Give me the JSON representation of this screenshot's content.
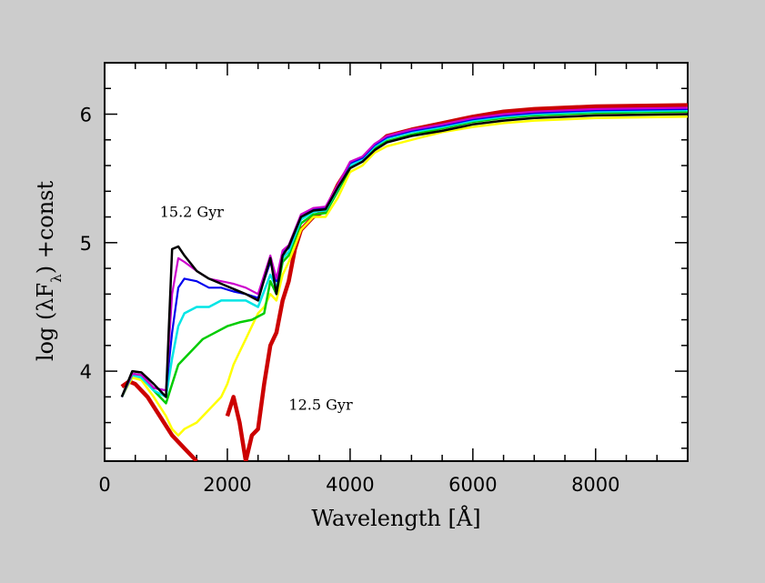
{
  "chart_data": {
    "type": "line",
    "title": "",
    "xlabel": "Wavelength [Å]",
    "ylabel": "log (λF",
    "ylabel_sub": "λ",
    "ylabel_tail": ") +const",
    "xlim": [
      0,
      9500
    ],
    "ylim": [
      3.3,
      6.4
    ],
    "xticks": [
      0,
      2000,
      4000,
      6000,
      8000
    ],
    "xtick_labels": [
      "0",
      "2000",
      "4000",
      "6000",
      "8000"
    ],
    "yticks": [
      4,
      5,
      6
    ],
    "ytick_labels": [
      "4",
      "5",
      "6"
    ],
    "grid": false,
    "legend": "none",
    "annotations": [
      {
        "text": "15.2 Gyr",
        "x": 900,
        "y": 5.2
      },
      {
        "text": "12.5 Gyr",
        "x": 3000,
        "y": 3.7
      }
    ],
    "series": [
      {
        "color": "#cc0000",
        "width": 4.5,
        "points": [
          [
            280,
            3.88
          ],
          [
            400,
            3.92
          ],
          [
            500,
            3.9
          ],
          [
            700,
            3.8
          ],
          [
            900,
            3.65
          ],
          [
            1100,
            3.5
          ],
          [
            1300,
            3.4
          ],
          [
            1500,
            3.3
          ]
        ],
        "extra": [
          [
            2000,
            3.65
          ],
          [
            2100,
            3.8
          ],
          [
            2200,
            3.6
          ],
          [
            2300,
            3.3
          ],
          [
            2400,
            3.5
          ],
          [
            2500,
            3.55
          ],
          [
            2600,
            3.9
          ],
          [
            2700,
            4.2
          ],
          [
            2800,
            4.3
          ],
          [
            2900,
            4.55
          ],
          [
            3000,
            4.7
          ],
          [
            3100,
            4.95
          ],
          [
            3200,
            5.1
          ],
          [
            3400,
            5.2
          ],
          [
            3600,
            5.25
          ],
          [
            3800,
            5.45
          ],
          [
            4000,
            5.6
          ],
          [
            4200,
            5.65
          ],
          [
            4400,
            5.75
          ],
          [
            4600,
            5.83
          ],
          [
            5000,
            5.88
          ],
          [
            5500,
            5.93
          ],
          [
            6000,
            5.98
          ],
          [
            6500,
            6.02
          ],
          [
            7000,
            6.04
          ],
          [
            8000,
            6.06
          ],
          [
            9500,
            6.07
          ]
        ]
      },
      {
        "color": "#ffff00",
        "width": 2.5,
        "points": [
          [
            280,
            3.8
          ],
          [
            450,
            3.95
          ],
          [
            600,
            3.93
          ],
          [
            800,
            3.8
          ],
          [
            1000,
            3.65
          ],
          [
            1100,
            3.55
          ],
          [
            1200,
            3.5
          ],
          [
            1300,
            3.55
          ],
          [
            1500,
            3.6
          ],
          [
            1700,
            3.7
          ],
          [
            1900,
            3.8
          ],
          [
            2000,
            3.9
          ],
          [
            2100,
            4.05
          ],
          [
            2200,
            4.15
          ],
          [
            2300,
            4.25
          ],
          [
            2400,
            4.35
          ],
          [
            2500,
            4.45
          ],
          [
            2600,
            4.5
          ],
          [
            2700,
            4.6
          ],
          [
            2800,
            4.55
          ],
          [
            2900,
            4.75
          ],
          [
            3000,
            4.85
          ],
          [
            3200,
            5.1
          ],
          [
            3400,
            5.2
          ],
          [
            3600,
            5.2
          ],
          [
            3800,
            5.35
          ],
          [
            4000,
            5.55
          ],
          [
            4200,
            5.6
          ],
          [
            4400,
            5.7
          ],
          [
            4600,
            5.75
          ],
          [
            5000,
            5.8
          ],
          [
            5500,
            5.86
          ],
          [
            6000,
            5.9
          ],
          [
            6500,
            5.93
          ],
          [
            7000,
            5.95
          ],
          [
            8000,
            5.97
          ],
          [
            9500,
            5.98
          ]
        ]
      },
      {
        "color": "#00cc00",
        "width": 2.5,
        "points": [
          [
            280,
            3.8
          ],
          [
            450,
            3.97
          ],
          [
            600,
            3.95
          ],
          [
            800,
            3.85
          ],
          [
            1000,
            3.75
          ],
          [
            1100,
            3.9
          ],
          [
            1200,
            4.05
          ],
          [
            1400,
            4.15
          ],
          [
            1600,
            4.25
          ],
          [
            1800,
            4.3
          ],
          [
            2000,
            4.35
          ],
          [
            2200,
            4.38
          ],
          [
            2400,
            4.4
          ],
          [
            2600,
            4.45
          ],
          [
            2700,
            4.7
          ],
          [
            2800,
            4.6
          ],
          [
            2900,
            4.85
          ],
          [
            3000,
            4.9
          ],
          [
            3200,
            5.15
          ],
          [
            3400,
            5.22
          ],
          [
            3600,
            5.23
          ],
          [
            3800,
            5.4
          ],
          [
            4000,
            5.58
          ],
          [
            4200,
            5.63
          ],
          [
            4400,
            5.73
          ],
          [
            4600,
            5.79
          ],
          [
            5000,
            5.84
          ],
          [
            5500,
            5.89
          ],
          [
            6000,
            5.94
          ],
          [
            6500,
            5.97
          ],
          [
            7000,
            5.99
          ],
          [
            8000,
            6.01
          ],
          [
            9500,
            6.02
          ]
        ]
      },
      {
        "color": "#00e5e5",
        "width": 2.5,
        "points": [
          [
            280,
            3.8
          ],
          [
            450,
            3.97
          ],
          [
            600,
            3.95
          ],
          [
            800,
            3.85
          ],
          [
            1000,
            3.8
          ],
          [
            1100,
            4.1
          ],
          [
            1200,
            4.35
          ],
          [
            1300,
            4.45
          ],
          [
            1500,
            4.5
          ],
          [
            1700,
            4.5
          ],
          [
            1900,
            4.55
          ],
          [
            2100,
            4.55
          ],
          [
            2300,
            4.55
          ],
          [
            2500,
            4.5
          ],
          [
            2700,
            4.75
          ],
          [
            2800,
            4.65
          ],
          [
            2900,
            4.88
          ],
          [
            3000,
            4.93
          ],
          [
            3200,
            5.18
          ],
          [
            3400,
            5.24
          ],
          [
            3600,
            5.25
          ],
          [
            3800,
            5.42
          ],
          [
            4000,
            5.6
          ],
          [
            4200,
            5.65
          ],
          [
            4400,
            5.75
          ],
          [
            4600,
            5.81
          ],
          [
            5000,
            5.86
          ],
          [
            5500,
            5.9
          ],
          [
            6000,
            5.95
          ],
          [
            6500,
            5.98
          ],
          [
            7000,
            6.0
          ],
          [
            8000,
            6.02
          ],
          [
            9500,
            6.03
          ]
        ]
      },
      {
        "color": "#0000ee",
        "width": 2.2,
        "points": [
          [
            280,
            3.8
          ],
          [
            450,
            3.98
          ],
          [
            600,
            3.97
          ],
          [
            800,
            3.87
          ],
          [
            1000,
            3.85
          ],
          [
            1100,
            4.3
          ],
          [
            1200,
            4.65
          ],
          [
            1300,
            4.72
          ],
          [
            1500,
            4.7
          ],
          [
            1700,
            4.65
          ],
          [
            1900,
            4.65
          ],
          [
            2100,
            4.62
          ],
          [
            2300,
            4.6
          ],
          [
            2500,
            4.57
          ],
          [
            2700,
            4.85
          ],
          [
            2800,
            4.7
          ],
          [
            2900,
            4.92
          ],
          [
            3000,
            4.96
          ],
          [
            3200,
            5.2
          ],
          [
            3400,
            5.26
          ],
          [
            3600,
            5.27
          ],
          [
            3800,
            5.44
          ],
          [
            4000,
            5.62
          ],
          [
            4200,
            5.66
          ],
          [
            4400,
            5.76
          ],
          [
            4600,
            5.82
          ],
          [
            5000,
            5.87
          ],
          [
            5500,
            5.91
          ],
          [
            6000,
            5.96
          ],
          [
            6500,
            5.99
          ],
          [
            7000,
            6.01
          ],
          [
            8000,
            6.03
          ],
          [
            9500,
            6.04
          ]
        ]
      },
      {
        "color": "#cc00cc",
        "width": 2.2,
        "points": [
          [
            280,
            3.8
          ],
          [
            450,
            3.98
          ],
          [
            600,
            3.97
          ],
          [
            800,
            3.87
          ],
          [
            1000,
            3.85
          ],
          [
            1100,
            4.6
          ],
          [
            1200,
            4.88
          ],
          [
            1300,
            4.85
          ],
          [
            1500,
            4.78
          ],
          [
            1700,
            4.72
          ],
          [
            1900,
            4.7
          ],
          [
            2100,
            4.68
          ],
          [
            2300,
            4.65
          ],
          [
            2500,
            4.6
          ],
          [
            2700,
            4.9
          ],
          [
            2800,
            4.72
          ],
          [
            2900,
            4.94
          ],
          [
            3000,
            4.98
          ],
          [
            3200,
            5.22
          ],
          [
            3400,
            5.27
          ],
          [
            3600,
            5.28
          ],
          [
            3800,
            5.45
          ],
          [
            4000,
            5.63
          ],
          [
            4200,
            5.67
          ],
          [
            4400,
            5.77
          ],
          [
            4600,
            5.83
          ],
          [
            5000,
            5.88
          ],
          [
            5500,
            5.92
          ],
          [
            6000,
            5.97
          ],
          [
            6500,
            6.0
          ],
          [
            7000,
            6.02
          ],
          [
            8000,
            6.04
          ],
          [
            9500,
            6.05
          ]
        ]
      },
      {
        "color": "#000000",
        "width": 2.5,
        "points": [
          [
            280,
            3.8
          ],
          [
            450,
            4.0
          ],
          [
            600,
            3.99
          ],
          [
            800,
            3.9
          ],
          [
            1000,
            3.8
          ],
          [
            1100,
            4.95
          ],
          [
            1200,
            4.97
          ],
          [
            1300,
            4.9
          ],
          [
            1500,
            4.78
          ],
          [
            1700,
            4.72
          ],
          [
            1900,
            4.68
          ],
          [
            2100,
            4.64
          ],
          [
            2300,
            4.6
          ],
          [
            2500,
            4.55
          ],
          [
            2700,
            4.88
          ],
          [
            2800,
            4.6
          ],
          [
            2900,
            4.9
          ],
          [
            3000,
            4.97
          ],
          [
            3200,
            5.2
          ],
          [
            3400,
            5.25
          ],
          [
            3600,
            5.26
          ],
          [
            3800,
            5.43
          ],
          [
            4000,
            5.58
          ],
          [
            4200,
            5.63
          ],
          [
            4400,
            5.72
          ],
          [
            4600,
            5.78
          ],
          [
            5000,
            5.83
          ],
          [
            5500,
            5.87
          ],
          [
            6000,
            5.92
          ],
          [
            6500,
            5.95
          ],
          [
            7000,
            5.97
          ],
          [
            8000,
            5.99
          ],
          [
            9500,
            6.0
          ]
        ]
      }
    ]
  }
}
